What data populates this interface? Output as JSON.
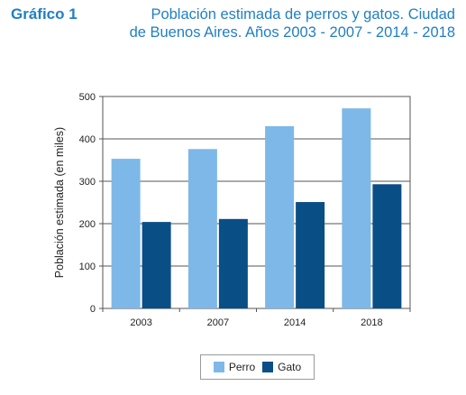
{
  "header": {
    "label": "Gráfico 1",
    "title_line1": "Población estimada de perros y gatos. Ciudad",
    "title_line2": "de Buenos Aires. Años 2003 - 2007 - 2014 - 2018"
  },
  "colors": {
    "perro": "#7db8e8",
    "gato": "#0a4e86"
  },
  "chart_data": {
    "type": "bar",
    "title": "Población estimada de perros y gatos. Ciudad de Buenos Aires. Años 2003 - 2007 - 2014 - 2018",
    "categories": [
      "2003",
      "2007",
      "2014",
      "2018"
    ],
    "series": [
      {
        "name": "Perro",
        "values": [
          353,
          376,
          430,
          472
        ]
      },
      {
        "name": "Gato",
        "values": [
          204,
          211,
          251,
          293
        ]
      }
    ],
    "xlabel": "",
    "ylabel": "Población estimada (en miles)",
    "ylim": [
      0,
      500
    ],
    "yticks": [
      0,
      100,
      200,
      300,
      400,
      500
    ],
    "grid": true,
    "legend": "bottom"
  }
}
